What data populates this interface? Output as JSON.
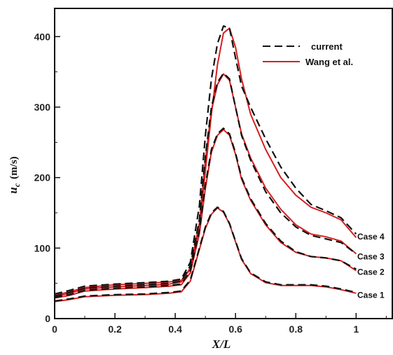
{
  "chart_data": {
    "type": "line",
    "xlabel": "X/L",
    "ylabel": "u",
    "ylabel_subscript": "c",
    "ylabel_unit": "(m/s)",
    "xlim": [
      0,
      1.12
    ],
    "ylim": [
      0,
      440
    ],
    "xticks": [
      0,
      0.2,
      0.4,
      0.6,
      0.8,
      1
    ],
    "xtick_labels": [
      "0",
      "0.2",
      "0.4",
      "0.6",
      "0.8",
      "1"
    ],
    "yticks": [
      0,
      100,
      200,
      300,
      400
    ],
    "ytick_labels": [
      "0",
      "100",
      "200",
      "300",
      "400"
    ],
    "legend_position": "top-right",
    "legend": [
      {
        "name": "current",
        "style": "dashed",
        "color": "#111111"
      },
      {
        "name": "Wang et al.",
        "style": "solid",
        "color": "#d42020"
      }
    ],
    "case_labels": [
      "Case 4",
      "Case 3",
      "Case 2",
      "Case 1"
    ],
    "series": [
      {
        "name": "current",
        "case": "Case 4",
        "x": [
          0,
          0.05,
          0.1,
          0.2,
          0.3,
          0.38,
          0.42,
          0.45,
          0.48,
          0.5,
          0.52,
          0.54,
          0.56,
          0.58,
          0.6,
          0.62,
          0.65,
          0.7,
          0.75,
          0.8,
          0.85,
          0.9,
          0.95,
          1.0
        ],
        "y": [
          35,
          40,
          46,
          49,
          51,
          53,
          56,
          80,
          160,
          260,
          340,
          390,
          415,
          412,
          370,
          330,
          300,
          255,
          215,
          185,
          162,
          153,
          143,
          120
        ]
      },
      {
        "name": "Wang et al.",
        "case": "Case 4",
        "x": [
          0,
          0.05,
          0.1,
          0.2,
          0.3,
          0.38,
          0.42,
          0.45,
          0.48,
          0.5,
          0.52,
          0.54,
          0.56,
          0.58,
          0.6,
          0.62,
          0.65,
          0.7,
          0.75,
          0.8,
          0.85,
          0.9,
          0.95,
          1.0
        ],
        "y": [
          33,
          38,
          44,
          48,
          50,
          52,
          54,
          70,
          130,
          210,
          290,
          360,
          405,
          412,
          385,
          340,
          290,
          240,
          200,
          175,
          158,
          150,
          140,
          115
        ]
      },
      {
        "name": "current",
        "case": "Case 3",
        "x": [
          0,
          0.05,
          0.1,
          0.2,
          0.3,
          0.38,
          0.42,
          0.45,
          0.48,
          0.5,
          0.52,
          0.54,
          0.56,
          0.58,
          0.6,
          0.62,
          0.65,
          0.7,
          0.75,
          0.8,
          0.85,
          0.9,
          0.95,
          1.0
        ],
        "y": [
          32,
          37,
          43,
          46,
          48,
          50,
          53,
          75,
          140,
          230,
          300,
          335,
          348,
          340,
          300,
          260,
          225,
          180,
          150,
          130,
          118,
          113,
          108,
          92
        ]
      },
      {
        "name": "Wang et al.",
        "case": "Case 3",
        "x": [
          0,
          0.05,
          0.1,
          0.2,
          0.3,
          0.38,
          0.42,
          0.45,
          0.48,
          0.5,
          0.52,
          0.54,
          0.56,
          0.58,
          0.6,
          0.62,
          0.65,
          0.7,
          0.75,
          0.8,
          0.85,
          0.9,
          0.95,
          1.0
        ],
        "y": [
          31,
          36,
          42,
          45,
          47,
          49,
          52,
          72,
          135,
          225,
          295,
          332,
          347,
          338,
          300,
          262,
          228,
          185,
          155,
          133,
          120,
          116,
          110,
          92
        ]
      },
      {
        "name": "current",
        "case": "Case 2",
        "x": [
          0,
          0.05,
          0.1,
          0.2,
          0.3,
          0.38,
          0.42,
          0.45,
          0.48,
          0.5,
          0.52,
          0.54,
          0.56,
          0.58,
          0.6,
          0.62,
          0.65,
          0.7,
          0.75,
          0.8,
          0.85,
          0.9,
          0.95,
          1.0
        ],
        "y": [
          30,
          34,
          40,
          43,
          45,
          47,
          49,
          68,
          125,
          190,
          240,
          262,
          270,
          262,
          235,
          200,
          170,
          135,
          110,
          95,
          88,
          86,
          82,
          70
        ]
      },
      {
        "name": "Wang et al.",
        "case": "Case 2",
        "x": [
          0,
          0.05,
          0.1,
          0.2,
          0.3,
          0.38,
          0.42,
          0.45,
          0.48,
          0.5,
          0.52,
          0.54,
          0.56,
          0.58,
          0.6,
          0.62,
          0.65,
          0.7,
          0.75,
          0.8,
          0.85,
          0.9,
          0.95,
          1.0
        ],
        "y": [
          29,
          33,
          39,
          42,
          44,
          46,
          48,
          65,
          120,
          185,
          236,
          260,
          268,
          260,
          233,
          198,
          168,
          133,
          108,
          94,
          88,
          86,
          82,
          68
        ]
      },
      {
        "name": "current",
        "case": "Case 1",
        "x": [
          0,
          0.05,
          0.1,
          0.2,
          0.3,
          0.38,
          0.42,
          0.45,
          0.48,
          0.5,
          0.52,
          0.54,
          0.56,
          0.58,
          0.6,
          0.62,
          0.65,
          0.7,
          0.75,
          0.8,
          0.85,
          0.9,
          0.95,
          1.0
        ],
        "y": [
          25,
          28,
          32,
          34,
          35,
          37,
          39,
          55,
          100,
          130,
          150,
          158,
          152,
          135,
          110,
          85,
          65,
          52,
          48,
          48,
          48,
          46,
          42,
          37
        ]
      },
      {
        "name": "Wang et al.",
        "case": "Case 1",
        "x": [
          0,
          0.05,
          0.1,
          0.2,
          0.3,
          0.38,
          0.42,
          0.45,
          0.48,
          0.5,
          0.52,
          0.54,
          0.56,
          0.58,
          0.6,
          0.62,
          0.65,
          0.7,
          0.75,
          0.8,
          0.85,
          0.9,
          0.95,
          1.0
        ],
        "y": [
          24,
          27,
          31,
          33,
          34,
          36,
          38,
          53,
          98,
          128,
          148,
          157,
          151,
          134,
          109,
          84,
          64,
          51,
          47,
          47,
          47,
          45,
          41,
          36
        ]
      }
    ]
  }
}
